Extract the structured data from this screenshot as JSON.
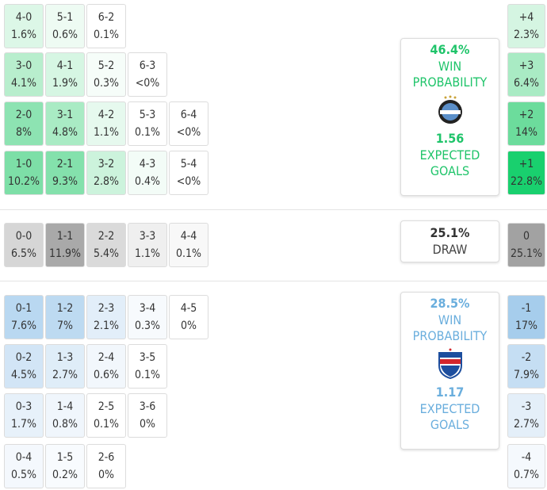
{
  "home": {
    "rows": [
      [
        {
          "score": "4-0",
          "pct": "1.6%",
          "color": "#dcf7e7"
        },
        {
          "score": "5-1",
          "pct": "0.6%",
          "color": "#eefbf3"
        },
        {
          "score": "6-2",
          "pct": "0.1%",
          "color": "#ffffff"
        }
      ],
      [
        {
          "score": "3-0",
          "pct": "4.1%",
          "color": "#b8eecd"
        },
        {
          "score": "4-1",
          "pct": "1.9%",
          "color": "#d6f6e3"
        },
        {
          "score": "5-2",
          "pct": "0.3%",
          "color": "#f6fdf9"
        },
        {
          "score": "6-3",
          "pct": "<0%",
          "color": "#ffffff"
        }
      ],
      [
        {
          "score": "2-0",
          "pct": "8%",
          "color": "#8de3b2"
        },
        {
          "score": "3-1",
          "pct": "4.8%",
          "color": "#a9ebc4"
        },
        {
          "score": "4-2",
          "pct": "1.1%",
          "color": "#e6f9ee"
        },
        {
          "score": "5-3",
          "pct": "0.1%",
          "color": "#ffffff"
        },
        {
          "score": "6-4",
          "pct": "<0%",
          "color": "#ffffff"
        }
      ],
      [
        {
          "score": "1-0",
          "pct": "10.2%",
          "color": "#7ddfa7"
        },
        {
          "score": "2-1",
          "pct": "9.3%",
          "color": "#84e1ac"
        },
        {
          "score": "3-2",
          "pct": "2.8%",
          "color": "#ccf3dc"
        },
        {
          "score": "4-3",
          "pct": "0.4%",
          "color": "#f3fcf7"
        },
        {
          "score": "5-4",
          "pct": "<0%",
          "color": "#ffffff"
        }
      ]
    ],
    "margins": [
      {
        "label": "+4",
        "pct": "2.3%",
        "color": "#d5f5e2"
      },
      {
        "label": "+3",
        "pct": "6.4%",
        "color": "#a9ebc4"
      },
      {
        "label": "+2",
        "pct": "14%",
        "color": "#6cdc9c"
      },
      {
        "label": "+1",
        "pct": "22.8%",
        "color": "#19d06e"
      }
    ],
    "summary": {
      "probability": "46.4%",
      "probability_label": "WIN PROBABILITY",
      "expected_goals": "1.56",
      "expected_goals_label": "EXPECTED GOALS",
      "color": "#1fc46a"
    }
  },
  "draw": {
    "rows": [
      [
        {
          "score": "0-0",
          "pct": "6.5%",
          "color": "#d6d6d6"
        },
        {
          "score": "1-1",
          "pct": "11.9%",
          "color": "#a9a9a9"
        },
        {
          "score": "2-2",
          "pct": "5.4%",
          "color": "#dadada"
        },
        {
          "score": "3-3",
          "pct": "1.1%",
          "color": "#efefef"
        },
        {
          "score": "4-4",
          "pct": "0.1%",
          "color": "#f8f8f8"
        }
      ]
    ],
    "margins": [
      {
        "label": "0",
        "pct": "25.1%",
        "color": "#a2a2a2"
      }
    ],
    "summary": {
      "probability": "25.1%",
      "probability_label": "DRAW",
      "color": "#444444"
    }
  },
  "away": {
    "rows": [
      [
        {
          "score": "0-1",
          "pct": "7.6%",
          "color": "#b9d8f1"
        },
        {
          "score": "1-2",
          "pct": "7%",
          "color": "#bddaf1"
        },
        {
          "score": "2-3",
          "pct": "2.1%",
          "color": "#e2eef9"
        },
        {
          "score": "3-4",
          "pct": "0.3%",
          "color": "#f7fafd"
        },
        {
          "score": "4-5",
          "pct": "0%",
          "color": "#ffffff"
        }
      ],
      [
        {
          "score": "0-2",
          "pct": "4.5%",
          "color": "#d2e5f6"
        },
        {
          "score": "1-3",
          "pct": "2.7%",
          "color": "#dfedf8"
        },
        {
          "score": "2-4",
          "pct": "0.6%",
          "color": "#f2f7fc"
        },
        {
          "score": "3-5",
          "pct": "0.1%",
          "color": "#ffffff"
        }
      ],
      [
        {
          "score": "0-3",
          "pct": "1.7%",
          "color": "#e7f1fa"
        },
        {
          "score": "1-4",
          "pct": "0.8%",
          "color": "#f0f6fc"
        },
        {
          "score": "2-5",
          "pct": "0.1%",
          "color": "#ffffff"
        },
        {
          "score": "3-6",
          "pct": "0%",
          "color": "#ffffff"
        }
      ],
      [
        {
          "score": "0-4",
          "pct": "0.5%",
          "color": "#f4f8fd"
        },
        {
          "score": "1-5",
          "pct": "0.2%",
          "color": "#f8fbfe"
        },
        {
          "score": "2-6",
          "pct": "0%",
          "color": "#ffffff"
        }
      ]
    ],
    "margins": [
      {
        "label": "-1",
        "pct": "17%",
        "color": "#a6cdec"
      },
      {
        "label": "-2",
        "pct": "7.9%",
        "color": "#c5def3"
      },
      {
        "label": "-3",
        "pct": "2.7%",
        "color": "#e4eff9"
      },
      {
        "label": "-4",
        "pct": "0.7%",
        "color": "#f5f9fd"
      }
    ],
    "summary": {
      "probability": "28.5%",
      "probability_label": "WIN PROBABILITY",
      "expected_goals": "1.17",
      "expected_goals_label": "EXPECTED GOALS",
      "color": "#6aaedd"
    }
  }
}
